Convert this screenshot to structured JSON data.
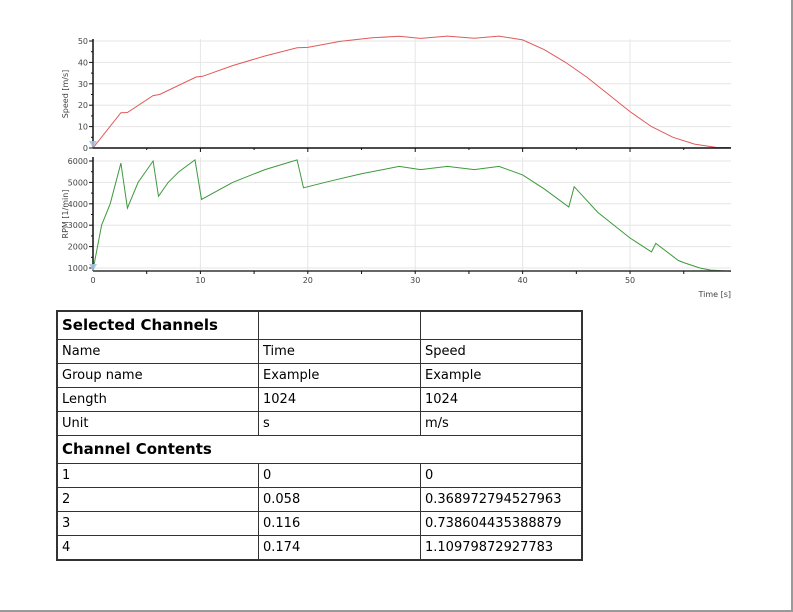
{
  "chart_data": [
    {
      "type": "line",
      "title": "",
      "xlabel": "",
      "ylabel": "Speed [m/s]",
      "xlim": [
        0,
        59.4
      ],
      "ylim": [
        0,
        52
      ],
      "yticks": [
        0,
        10,
        20,
        30,
        40,
        50
      ],
      "grid": true,
      "series": [
        {
          "name": "Speed",
          "color": "#e05a5a",
          "x": [
            0,
            2.6,
            3.2,
            5.6,
            6.2,
            9.6,
            10.2,
            13,
            16,
            19,
            20,
            23,
            26,
            28.5,
            30.5,
            33,
            35.5,
            37.8,
            40,
            42,
            44,
            46,
            48,
            50,
            52,
            54,
            56,
            58,
            59.4
          ],
          "y": [
            0,
            16.5,
            16.6,
            24.5,
            25,
            33.2,
            33.5,
            38.5,
            43,
            46.8,
            47,
            49.8,
            51.5,
            52.2,
            51.2,
            52.3,
            51.3,
            52.3,
            50.5,
            46,
            40,
            33,
            25,
            17,
            10,
            5,
            1.8,
            0.3,
            0.2
          ]
        }
      ]
    },
    {
      "type": "line",
      "title": "",
      "xlabel": "Time [s]",
      "ylabel": "RPM [1/min]",
      "xlim": [
        0,
        59.4
      ],
      "ylim": [
        800,
        6100
      ],
      "yticks": [
        1000,
        2000,
        3000,
        4000,
        5000,
        6000
      ],
      "xticks": [
        0,
        10,
        20,
        30,
        40,
        50
      ],
      "grid": true,
      "series": [
        {
          "name": "RPM",
          "color": "#3c9a3c",
          "x": [
            0,
            0.8,
            1.6,
            2.6,
            3.2,
            4.2,
            5.6,
            6.1,
            7,
            8,
            9.5,
            10.1,
            13,
            16,
            19,
            19.6,
            22,
            25,
            28.5,
            30.5,
            33,
            35.5,
            37.8,
            40,
            42,
            44.3,
            44.8,
            47,
            50,
            52,
            52.4,
            54.5,
            55,
            56.5,
            57.5,
            59.4
          ],
          "y": [
            900,
            3000,
            4000,
            5900,
            3800,
            5000,
            6000,
            4350,
            5000,
            5500,
            6050,
            4200,
            5000,
            5600,
            6050,
            4750,
            5050,
            5400,
            5750,
            5600,
            5750,
            5600,
            5750,
            5350,
            4700,
            3850,
            4800,
            3600,
            2400,
            1750,
            2150,
            1350,
            1250,
            1000,
            900,
            850
          ]
        }
      ]
    }
  ],
  "charts": {
    "speed": {
      "ylabel": "Speed [m/s]",
      "ytick_labels": [
        "0",
        "10",
        "20",
        "30",
        "40",
        "50"
      ]
    },
    "rpm": {
      "ylabel": "RPM [1/min]",
      "ytick_labels": [
        "1000",
        "2000",
        "3000",
        "4000",
        "5000",
        "6000"
      ],
      "xtick_labels": [
        "0",
        "10",
        "20",
        "30",
        "40",
        "50"
      ],
      "xlabel": "Time [s]"
    }
  },
  "table": {
    "selected_header": "Selected Channels",
    "properties": [
      {
        "label": "Name",
        "col1": "Time",
        "col2": "Speed"
      },
      {
        "label": "Group name",
        "col1": "Example",
        "col2": "Example"
      },
      {
        "label": "Length",
        "col1": "1024",
        "col2": "1024"
      },
      {
        "label": "Unit",
        "col1": "s",
        "col2": "m/s"
      }
    ],
    "contents_header": "Channel Contents",
    "contents": [
      {
        "index": "1",
        "col1": "0",
        "col2": "0"
      },
      {
        "index": "2",
        "col1": "0.058",
        "col2": "0.368972794527963"
      },
      {
        "index": "3",
        "col1": "0.116",
        "col2": "0.738604435388879"
      },
      {
        "index": "4",
        "col1": "0.174",
        "col2": "1.10979872927783"
      }
    ]
  }
}
